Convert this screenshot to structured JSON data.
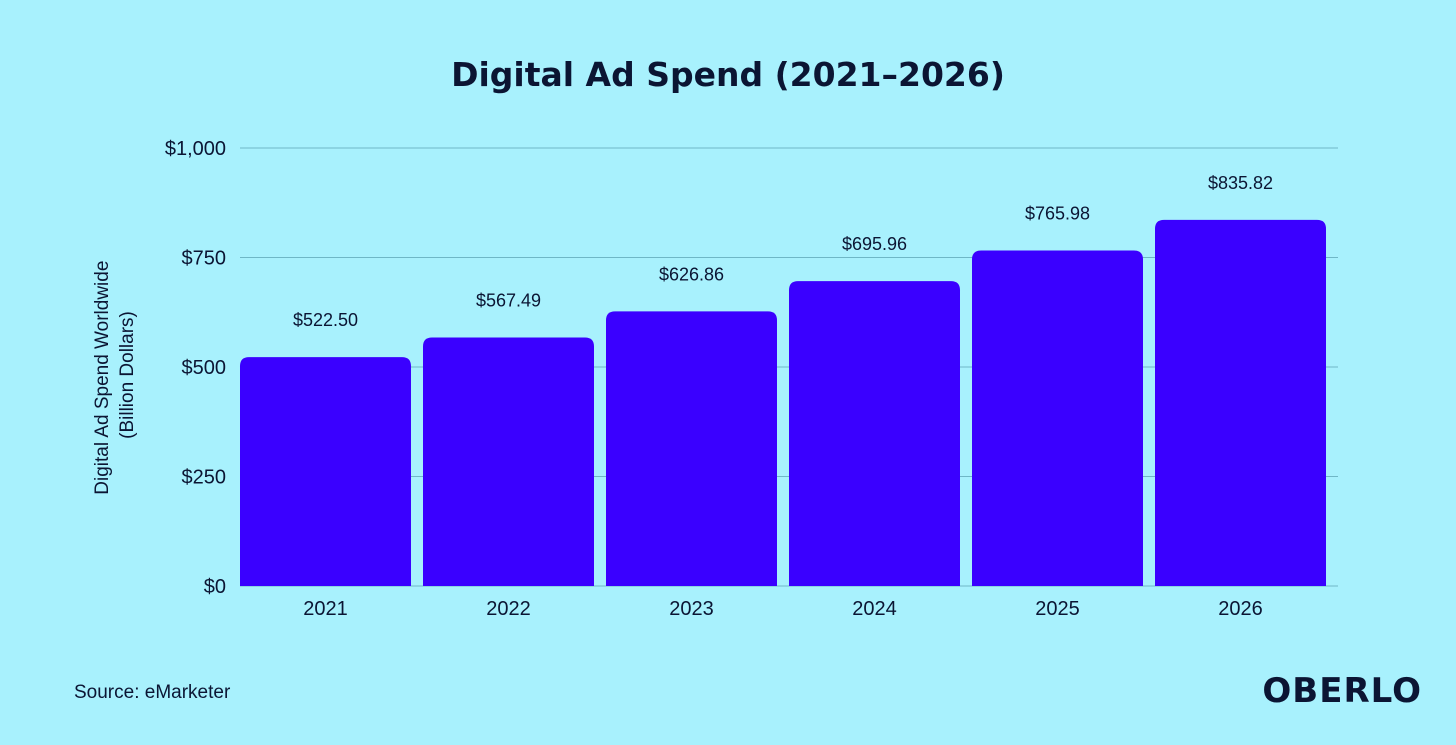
{
  "chart_data": {
    "type": "bar",
    "title": "Digital Ad Spend (2021–2026)",
    "ylabel": [
      "Digital Ad Spend Worldwide",
      "(Billion Dollars)"
    ],
    "xlabel": "",
    "categories": [
      "2021",
      "2022",
      "2023",
      "2024",
      "2025",
      "2026"
    ],
    "values": [
      522.5,
      567.49,
      626.86,
      695.96,
      765.98,
      835.82
    ],
    "data_labels": [
      "$522.50",
      "$567.49",
      "$626.86",
      "$695.96",
      "$765.98",
      "$835.82"
    ],
    "ylim": [
      0,
      1000
    ],
    "yticks": [
      0,
      250,
      500,
      750,
      1000
    ],
    "ytick_labels": [
      "$0",
      "$250",
      "$500",
      "$750",
      "$1,000"
    ],
    "grid": true,
    "bar_color": "#3a00ff"
  },
  "source": "Source: eMarketer",
  "logo": "OBERLO"
}
